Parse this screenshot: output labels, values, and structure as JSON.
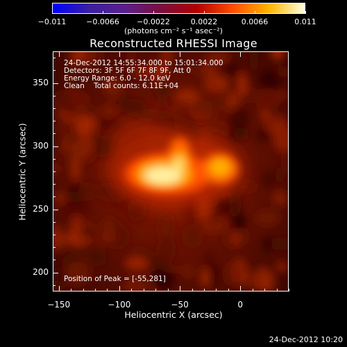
{
  "colorbar": {
    "tick_labels": [
      {
        "text": "−0.011",
        "value": -0.011
      },
      {
        "text": "−0.0066",
        "value": -0.0066
      },
      {
        "text": "−0.0022",
        "value": -0.0022
      },
      {
        "text": "0.0022",
        "value": 0.0022
      },
      {
        "text": "0.0066",
        "value": 0.0066
      },
      {
        "text": "0.011",
        "value": 0.011
      }
    ],
    "unit_label": "(photons cm⁻² s⁻¹ asec⁻²)",
    "range": [
      -0.011,
      0.011
    ],
    "colors": [
      "#0000ff",
      "#3a1fa0",
      "#5a208a",
      "#7a0f40",
      "#b00000",
      "#ff4d00",
      "#ffb400",
      "#ffffe0"
    ]
  },
  "title": "Reconstructed RHESSI Image",
  "info": {
    "time_range": "24-Dec-2012 14:55:34.000 to 15:01:34.000",
    "detectors": "Detectors: 3F 5F 6F 7F 8F 9F, Att 0",
    "energy_range": "Energy Range: 6.0 - 12.0 keV",
    "method_counts": "Clean    Total counts: 6.11E+04",
    "peak": "Position of Peak = [-55,281]"
  },
  "chart_data": {
    "type": "heatmap",
    "title": "Reconstructed RHESSI Image",
    "xlabel": "Heliocentric X (arcsec)",
    "ylabel": "Heliocentric Y (arcsec)",
    "xlim": [
      -155,
      40
    ],
    "ylim": [
      185,
      375
    ],
    "x_ticks": [
      {
        "text": "−150",
        "value": -150
      },
      {
        "text": "−100",
        "value": -100
      },
      {
        "text": "−50",
        "value": -50
      },
      {
        "text": "0",
        "value": 0
      }
    ],
    "y_ticks": [
      {
        "text": "200",
        "value": 200
      },
      {
        "text": "250",
        "value": 250
      },
      {
        "text": "300",
        "value": 300
      },
      {
        "text": "350",
        "value": 350
      }
    ],
    "peak_position": [
      -55,
      281
    ],
    "color_range": [
      -0.011,
      0.011
    ]
  },
  "footer": {
    "date": "24-Dec-2012 10:20"
  }
}
